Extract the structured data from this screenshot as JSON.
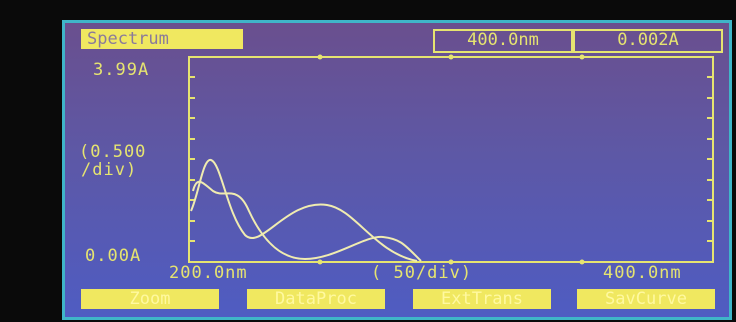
{
  "header": {
    "title": "Spectrum",
    "wavelength": "400.0nm",
    "absorbance": "0.002A"
  },
  "y_axis": {
    "max": "3.99A",
    "scale": [
      "(0.500",
      "/div)"
    ],
    "min": "0.00A"
  },
  "x_axis": {
    "min": "200.0nm",
    "scale": "( 50/div)",
    "max": "400.0nm"
  },
  "buttons": [
    "Zoom",
    "DataProc",
    "ExtTrans",
    "SavCurve"
  ]
}
